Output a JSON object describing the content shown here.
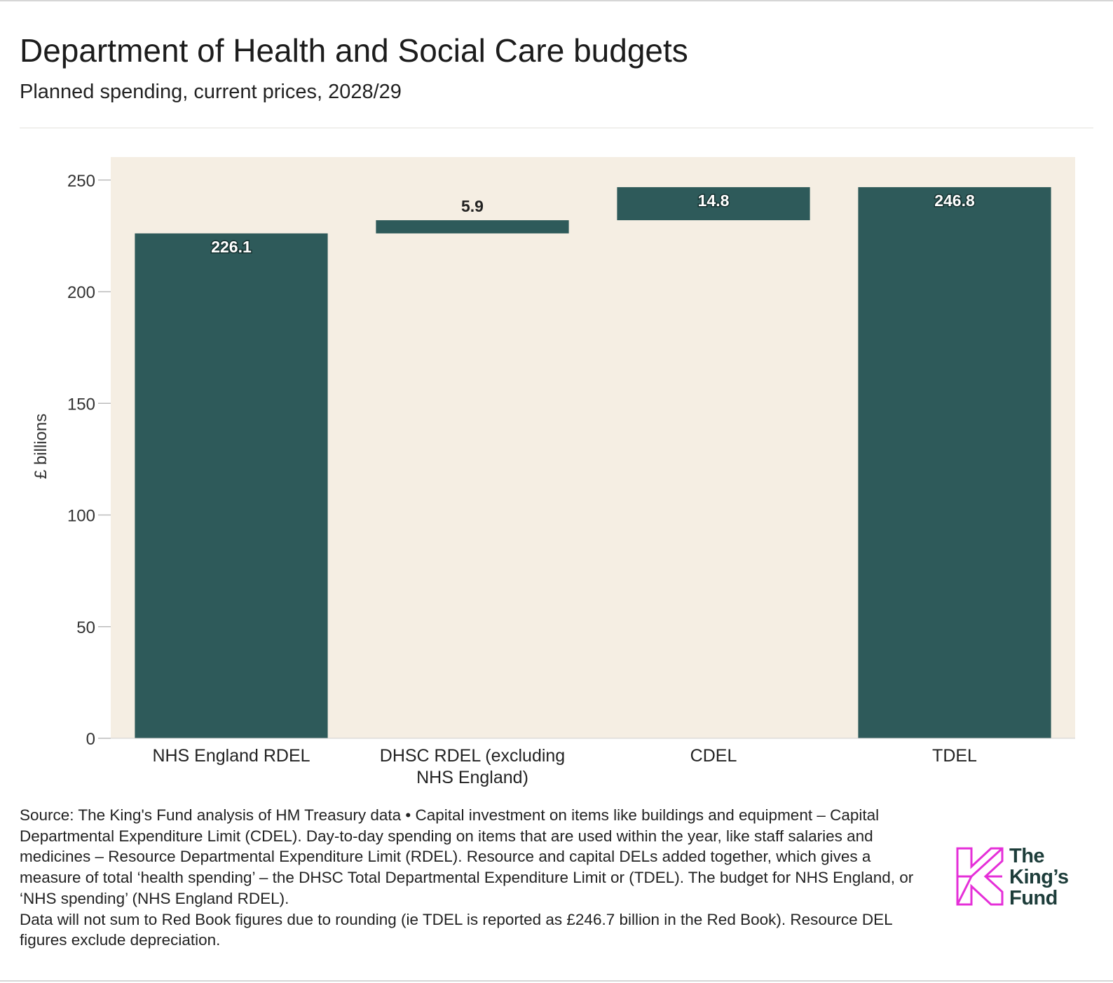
{
  "title": "Department of Health and Social Care budgets",
  "subtitle": "Planned spending, current prices, 2028/29",
  "colors": {
    "bar": "#2e5a5a",
    "plot_background": "#f5eee3",
    "label_dark": "#222222",
    "label_light": "#ffffff",
    "logo_pink": "#e52fd8",
    "logo_text": "#1d3d3a"
  },
  "chart_data": {
    "type": "bar",
    "subtype": "waterfall",
    "ylabel": "£ billions",
    "xlabel": "",
    "ylim": [
      0,
      260
    ],
    "yticks": [
      0,
      50,
      100,
      150,
      200,
      250
    ],
    "yticklabels": [
      "0",
      "50",
      "100",
      "150",
      "200",
      "250"
    ],
    "grid": false,
    "legend": "none",
    "categories": [
      [
        "NHS England RDEL"
      ],
      [
        "DHSC RDEL (excluding",
        "NHS England)"
      ],
      [
        "CDEL"
      ],
      [
        "TDEL"
      ]
    ],
    "bars": [
      {
        "name": "NHS England RDEL",
        "base": 0,
        "value": 226.1,
        "label": "226.1",
        "label_position": "inside-top"
      },
      {
        "name": "DHSC RDEL (excluding NHS England)",
        "base": 226.1,
        "value": 5.9,
        "label": "5.9",
        "label_position": "above"
      },
      {
        "name": "CDEL",
        "base": 232.0,
        "value": 14.8,
        "label": "14.8",
        "label_position": "inside-top"
      },
      {
        "name": "TDEL",
        "base": 0,
        "value": 246.8,
        "label": "246.8",
        "label_position": "inside-top"
      }
    ]
  },
  "footnote": {
    "paragraph1": "Source: The King's Fund analysis of HM Treasury data • Capital investment on items like buildings and equipment – Capital Departmental Expenditure Limit (CDEL). Day-to-day spending on items that are used within the year, like staff salaries and medicines – Resource Departmental Expenditure Limit (RDEL). Resource and capital DELs added together, which gives a measure of total ‘health spending’ – the DHSC Total Departmental Expenditure Limit or (TDEL). The budget for NHS England, or ‘NHS spending’ (NHS England RDEL).",
    "paragraph2": "Data will not sum to Red Book figures due to rounding (ie TDEL is reported as £246.7 billion in the Red Book). Resource DEL figures exclude depreciation."
  },
  "logo": {
    "line1": "The",
    "line2": "King’s",
    "line3": "Fund"
  }
}
